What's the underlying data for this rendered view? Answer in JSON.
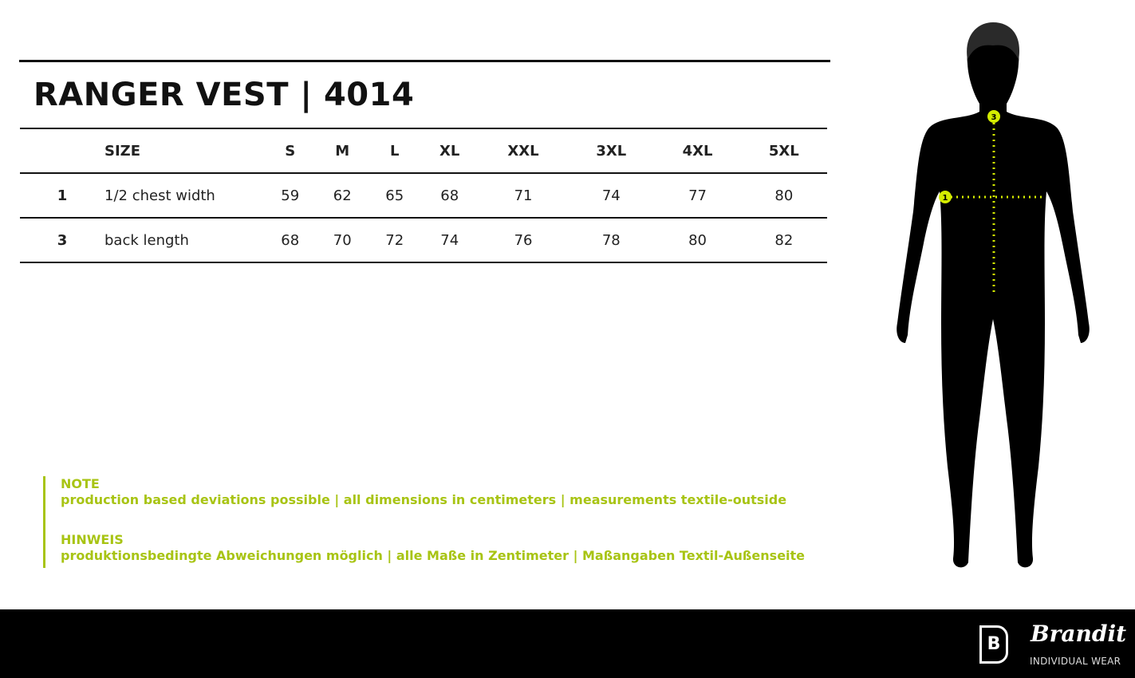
{
  "title": "RANGER VEST | 4014",
  "table": {
    "header": {
      "label": "SIZE",
      "sizes": [
        "S",
        "M",
        "L",
        "XL",
        "XXL",
        "3XL",
        "4XL",
        "5XL"
      ]
    },
    "rows": [
      {
        "num": "1",
        "label": "1/2 chest width",
        "values": [
          "59",
          "62",
          "65",
          "68",
          "71",
          "74",
          "77",
          "80"
        ]
      },
      {
        "num": "3",
        "label": "back length",
        "values": [
          "68",
          "70",
          "72",
          "74",
          "76",
          "78",
          "80",
          "82"
        ]
      }
    ]
  },
  "note": {
    "en_title": "NOTE",
    "en_text": "production based deviations possible | all dimensions in centimeters | measurements textile-outside",
    "de_title": "HINWEIS",
    "de_text": "produktionsbedingte Abweichungen möglich | alle Maße in Zentimeter | Maßangaben Textil-Außenseite"
  },
  "figure": {
    "markers": [
      "1",
      "3"
    ],
    "accent": "#d4ec00"
  },
  "footer": {
    "brand": "Brandit",
    "tagline": "INDIVIDUAL WEAR",
    "logo_letter": "B"
  },
  "colors": {
    "accent": "#a8c414",
    "footer_bg": "#000000"
  }
}
